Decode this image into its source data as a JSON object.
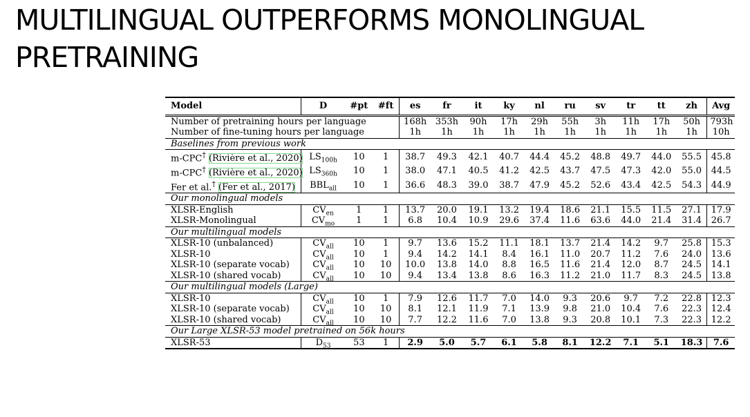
{
  "title": {
    "line1": "MULTILINGUAL OUTPERFORMS MONOLINGUAL",
    "line2": "PRETRAINING"
  },
  "table": {
    "header": {
      "model": "Model",
      "d": "D",
      "pt": "#pt",
      "ft": "#ft",
      "langs": [
        "es",
        "fr",
        "it",
        "ky",
        "nl",
        "ru",
        "sv",
        "tr",
        "tt",
        "zh"
      ],
      "avg": "Avg"
    },
    "hours": {
      "pretrain_label": "Number of pretraining hours per language",
      "pretrain_values": [
        "168h",
        "353h",
        "90h",
        "17h",
        "29h",
        "55h",
        "3h",
        "11h",
        "17h",
        "50h"
      ],
      "pretrain_avg": "793h",
      "finetune_label": "Number of fine-tuning hours per language",
      "finetune_values": [
        "1h",
        "1h",
        "1h",
        "1h",
        "1h",
        "1h",
        "1h",
        "1h",
        "1h",
        "1h"
      ],
      "finetune_avg": "10h"
    },
    "sections": [
      {
        "title": "Baselines from previous work",
        "rows": [
          {
            "model": "m-CPC",
            "mark": "†",
            "cite": "(Rivière et al., 2020)",
            "d": "LS",
            "dsub": "100h",
            "pt": "10",
            "ft": "1",
            "vals": [
              "38.7",
              "49.3",
              "42.1",
              "40.7",
              "44.4",
              "45.2",
              "48.8",
              "49.7",
              "44.0",
              "55.5"
            ],
            "avg": "45.8"
          },
          {
            "model": "m-CPC",
            "mark": "†",
            "cite": "(Rivière et al., 2020)",
            "d": "LS",
            "dsub": "360h",
            "pt": "10",
            "ft": "1",
            "vals": [
              "38.0",
              "47.1",
              "40.5",
              "41.2",
              "42.5",
              "43.7",
              "47.5",
              "47.3",
              "42.0",
              "55.0"
            ],
            "avg": "44.5"
          },
          {
            "model": "Fer et al.",
            "mark": "†",
            "cite": "(Fer et al., 2017)",
            "d": "BBL",
            "dsub": "all",
            "pt": "10",
            "ft": "1",
            "vals": [
              "36.6",
              "48.3",
              "39.0",
              "38.7",
              "47.9",
              "45.2",
              "52.6",
              "43.4",
              "42.5",
              "54.3"
            ],
            "avg": "44.9"
          }
        ]
      },
      {
        "title": "Our monolingual models",
        "rows": [
          {
            "model": "XLSR-English",
            "d": "CV",
            "dsub": "en",
            "pt": "1",
            "ft": "1",
            "vals": [
              "13.7",
              "20.0",
              "19.1",
              "13.2",
              "19.4",
              "18.6",
              "21.1",
              "15.5",
              "11.5",
              "27.1"
            ],
            "avg": "17.9"
          },
          {
            "model": "XLSR-Monolingual",
            "d": "CV",
            "dsub": "mo",
            "pt": "1",
            "ft": "1",
            "vals": [
              "6.8",
              "10.4",
              "10.9",
              "29.6",
              "37.4",
              "11.6",
              "63.6",
              "44.0",
              "21.4",
              "31.4"
            ],
            "avg": "26.7"
          }
        ]
      },
      {
        "title": "Our multilingual models",
        "rows": [
          {
            "model": "XLSR-10 (unbalanced)",
            "d": "CV",
            "dsub": "all",
            "pt": "10",
            "ft": "1",
            "vals": [
              "9.7",
              "13.6",
              "15.2",
              "11.1",
              "18.1",
              "13.7",
              "21.4",
              "14.2",
              "9.7",
              "25.8"
            ],
            "avg": "15.3"
          },
          {
            "model": "XLSR-10",
            "d": "CV",
            "dsub": "all",
            "pt": "10",
            "ft": "1",
            "vals": [
              "9.4",
              "14.2",
              "14.1",
              "8.4",
              "16.1",
              "11.0",
              "20.7",
              "11.2",
              "7.6",
              "24.0"
            ],
            "avg": "13.6"
          },
          {
            "model": "XLSR-10 (separate vocab)",
            "d": "CV",
            "dsub": "all",
            "pt": "10",
            "ft": "10",
            "vals": [
              "10.0",
              "13.8",
              "14.0",
              "8.8",
              "16.5",
              "11.6",
              "21.4",
              "12.0",
              "8.7",
              "24.5"
            ],
            "avg": "14.1"
          },
          {
            "model": "XLSR-10 (shared vocab)",
            "d": "CV",
            "dsub": "all",
            "pt": "10",
            "ft": "10",
            "vals": [
              "9.4",
              "13.4",
              "13.8",
              "8.6",
              "16.3",
              "11.2",
              "21.0",
              "11.7",
              "8.3",
              "24.5"
            ],
            "avg": "13.8"
          }
        ]
      },
      {
        "title": "Our multilingual models (Large)",
        "rows": [
          {
            "model": "XLSR-10",
            "d": "CV",
            "dsub": "all",
            "pt": "10",
            "ft": "1",
            "vals": [
              "7.9",
              "12.6",
              "11.7",
              "7.0",
              "14.0",
              "9.3",
              "20.6",
              "9.7",
              "7.2",
              "22.8"
            ],
            "avg": "12.3"
          },
          {
            "model": "XLSR-10 (separate vocab)",
            "d": "CV",
            "dsub": "all",
            "pt": "10",
            "ft": "10",
            "vals": [
              "8.1",
              "12.1",
              "11.9",
              "7.1",
              "13.9",
              "9.8",
              "21.0",
              "10.4",
              "7.6",
              "22.3"
            ],
            "avg": "12.4"
          },
          {
            "model": "XLSR-10 (shared vocab)",
            "d": "CV",
            "dsub": "all",
            "pt": "10",
            "ft": "10",
            "vals": [
              "7.7",
              "12.2",
              "11.6",
              "7.0",
              "13.8",
              "9.3",
              "20.8",
              "10.1",
              "7.3",
              "22.3"
            ],
            "avg": "12.2"
          }
        ]
      },
      {
        "title": "Our Large XLSR-53 model pretrained on 56k hours",
        "rows": [
          {
            "model": "XLSR-53",
            "d": "D",
            "dsub": "53",
            "pt": "53",
            "ft": "1",
            "vals": [
              "2.9",
              "5.0",
              "5.7",
              "6.1",
              "5.8",
              "8.1",
              "12.2",
              "7.1",
              "5.1",
              "18.3"
            ],
            "avg": "7.6",
            "bold": true
          }
        ]
      }
    ]
  }
}
